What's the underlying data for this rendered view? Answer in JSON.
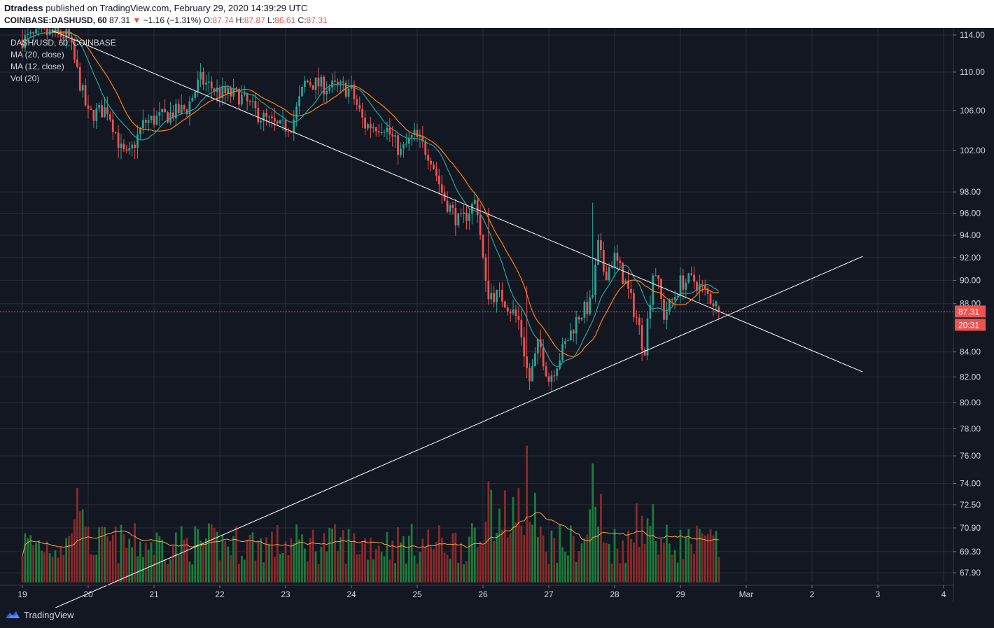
{
  "header": {
    "publisher": "Dtradess",
    "published_text": "published on TradingView.com, February 29, 2020 14:39:29 UTC",
    "symbol": "COINBASE:DASHUSD, 60",
    "last": "87.31",
    "change_arrow": "▼",
    "change": "−1.16 (−1.31%)",
    "o_label": "O:",
    "o_val": "87.74",
    "h_label": "H:",
    "h_val": "87.87",
    "l_label": "L:",
    "l_val": "86.61",
    "c_label": "C:",
    "c_val": "87.31"
  },
  "legend": {
    "series": "DASH/USD, 60, COINBASE",
    "ma20": "MA (20, close)",
    "ma12": "MA (12, close)",
    "vol": "Vol (20)"
  },
  "footer": {
    "brand": "TradingView"
  },
  "colors": {
    "background": "#131722",
    "grid": "#2a2e39",
    "up": "#26a69a",
    "down": "#ef5350",
    "ma20": "#ff7f0e",
    "ma12": "#26a69a",
    "trendline": "#ffffff",
    "price_line": "#ef5350"
  },
  "chart_data": {
    "type": "candlestick",
    "x_ticks": [
      "19",
      "20",
      "21",
      "22",
      "23",
      "24",
      "25",
      "26",
      "27",
      "28",
      "29",
      "Mar",
      "2",
      "3",
      "4"
    ],
    "y_ticks": [
      "114.00",
      "110.00",
      "106.00",
      "102.00",
      "98.00",
      "96.00",
      "94.00",
      "92.00",
      "90.00",
      "88.00",
      "84.00",
      "82.00",
      "80.00",
      "78.00",
      "76.00",
      "74.00",
      "72.50",
      "70.90",
      "69.30",
      "67.90"
    ],
    "scale": "log",
    "last_price_label": "87.31",
    "countdown_label": "20:31",
    "close_path": [
      {
        "day": 19.0,
        "price": 113.5
      },
      {
        "day": 19.4,
        "price": 114.2
      },
      {
        "day": 19.7,
        "price": 113.8
      },
      {
        "day": 19.85,
        "price": 109.5
      },
      {
        "day": 20.0,
        "price": 105.5
      },
      {
        "day": 20.3,
        "price": 106.2
      },
      {
        "day": 20.5,
        "price": 102.0
      },
      {
        "day": 20.6,
        "price": 101.2
      },
      {
        "day": 20.85,
        "price": 104.8
      },
      {
        "day": 21.2,
        "price": 105.5
      },
      {
        "day": 21.5,
        "price": 106.2
      },
      {
        "day": 21.7,
        "price": 109.2
      },
      {
        "day": 22.0,
        "price": 107.8
      },
      {
        "day": 22.3,
        "price": 107.5
      },
      {
        "day": 22.6,
        "price": 105.5
      },
      {
        "day": 22.9,
        "price": 104.2
      },
      {
        "day": 23.1,
        "price": 104.6
      },
      {
        "day": 23.3,
        "price": 109.0
      },
      {
        "day": 23.6,
        "price": 108.5
      },
      {
        "day": 23.9,
        "price": 108.3
      },
      {
        "day": 24.0,
        "price": 108.0
      },
      {
        "day": 24.2,
        "price": 104.5
      },
      {
        "day": 24.5,
        "price": 104.5
      },
      {
        "day": 24.75,
        "price": 101.8
      },
      {
        "day": 24.95,
        "price": 103.5
      },
      {
        "day": 25.2,
        "price": 101.5
      },
      {
        "day": 25.4,
        "price": 97.5
      },
      {
        "day": 25.65,
        "price": 95.0
      },
      {
        "day": 25.9,
        "price": 97.3
      },
      {
        "day": 26.05,
        "price": 89.0
      },
      {
        "day": 26.3,
        "price": 88.5
      },
      {
        "day": 26.55,
        "price": 86.5
      },
      {
        "day": 26.7,
        "price": 81.5
      },
      {
        "day": 26.85,
        "price": 84.8
      },
      {
        "day": 27.0,
        "price": 81.8
      },
      {
        "day": 27.2,
        "price": 84.0
      },
      {
        "day": 27.45,
        "price": 87.0
      },
      {
        "day": 27.65,
        "price": 88.0
      },
      {
        "day": 27.75,
        "price": 93.0
      },
      {
        "day": 27.85,
        "price": 90.5
      },
      {
        "day": 28.0,
        "price": 92.0
      },
      {
        "day": 28.15,
        "price": 90.0
      },
      {
        "day": 28.35,
        "price": 86.5
      },
      {
        "day": 28.45,
        "price": 84.0
      },
      {
        "day": 28.6,
        "price": 91.5
      },
      {
        "day": 28.75,
        "price": 87.0
      },
      {
        "day": 28.9,
        "price": 88.5
      },
      {
        "day": 29.0,
        "price": 89.8
      },
      {
        "day": 29.2,
        "price": 90.0
      },
      {
        "day": 29.4,
        "price": 88.8
      },
      {
        "day": 29.5,
        "price": 88.2
      },
      {
        "day": 29.6,
        "price": 87.31
      }
    ],
    "spikes": [
      {
        "day": 27.66,
        "high": 97.0,
        "volume_rel": 1.0
      },
      {
        "day": 26.67,
        "high": 89.5,
        "volume_rel": 1.15
      },
      {
        "day": 26.07,
        "high": 96.5,
        "volume_rel": 0.85
      }
    ],
    "trendlines": [
      {
        "from": {
          "day": 19.45,
          "price": 114.5
        },
        "to": {
          "day": 31.77,
          "price": 82.4
        }
      },
      {
        "from": {
          "day": 18.75,
          "price": 64.3
        },
        "to": {
          "day": 31.77,
          "price": 92.1
        }
      }
    ]
  }
}
